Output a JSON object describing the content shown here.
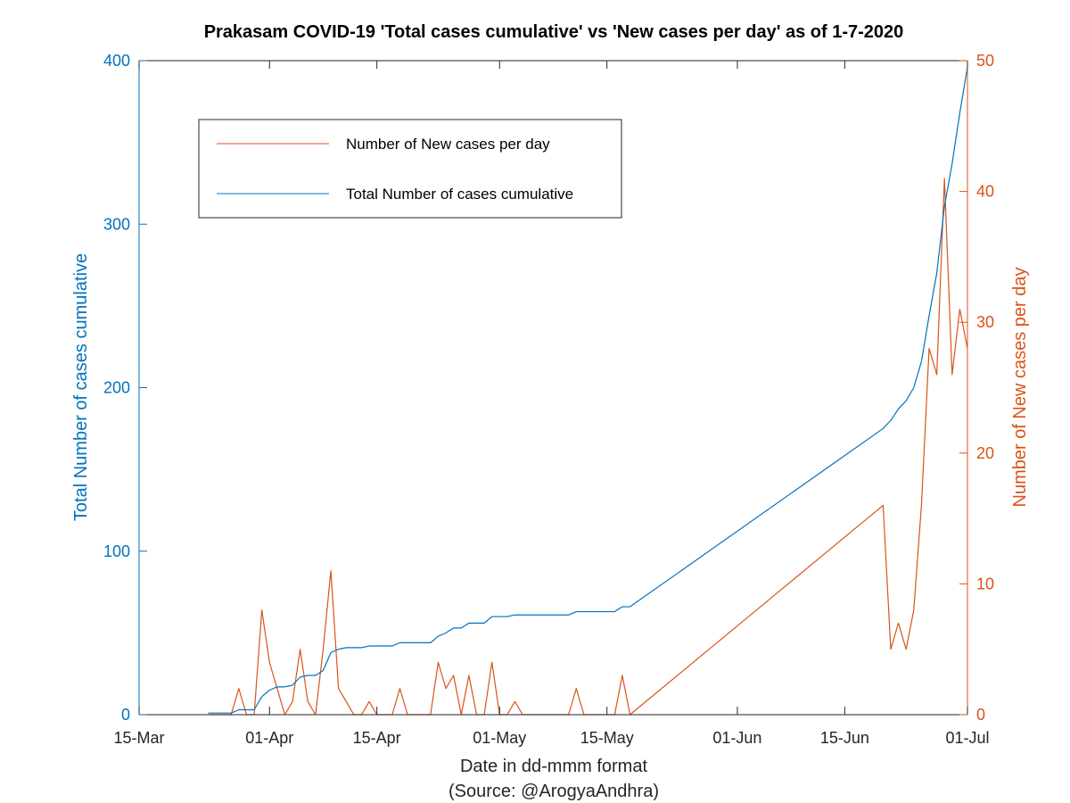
{
  "chart_data": {
    "type": "line",
    "title": "Prakasam COVID-19 'Total cases cumulative' vs 'New cases per day' as of 1-7-2020",
    "xlabel": "Date in dd-mmm format",
    "xlabel2": "(Source: @ArogyaAndhra)",
    "ylabel_left": "Total Number of cases cumulative",
    "ylabel_right": "Number of New cases per day",
    "x_ticks": [
      "15-Mar",
      "01-Apr",
      "15-Apr",
      "01-May",
      "15-May",
      "01-Jun",
      "15-Jun",
      "01-Jul"
    ],
    "x_tick_dates": [
      "2020-03-15",
      "2020-04-01",
      "2020-04-15",
      "2020-05-01",
      "2020-05-15",
      "2020-06-01",
      "2020-06-15",
      "2020-07-01"
    ],
    "xlim": [
      "2020-03-15",
      "2020-07-01"
    ],
    "ylim_left": [
      0,
      400
    ],
    "ylim_right": [
      0,
      50
    ],
    "yticks_left": [
      "0",
      "100",
      "200",
      "300",
      "400"
    ],
    "yticks_right": [
      "0",
      "10",
      "20",
      "30",
      "40",
      "50"
    ],
    "legend_position": "top-left",
    "colors": {
      "left_series": "#0072BD",
      "right_series": "#D95319",
      "axes": "#262626"
    },
    "series": [
      {
        "name": "Number of New cases per day",
        "axis": "right",
        "points": [
          [
            "2020-03-24",
            0
          ],
          [
            "2020-03-25",
            0
          ],
          [
            "2020-03-26",
            0
          ],
          [
            "2020-03-27",
            0
          ],
          [
            "2020-03-28",
            2
          ],
          [
            "2020-03-29",
            0
          ],
          [
            "2020-03-30",
            0
          ],
          [
            "2020-03-31",
            8
          ],
          [
            "2020-04-01",
            4
          ],
          [
            "2020-04-02",
            2
          ],
          [
            "2020-04-03",
            0
          ],
          [
            "2020-04-04",
            1
          ],
          [
            "2020-04-05",
            5
          ],
          [
            "2020-04-06",
            1
          ],
          [
            "2020-04-07",
            0
          ],
          [
            "2020-04-08",
            5
          ],
          [
            "2020-04-09",
            11
          ],
          [
            "2020-04-10",
            2
          ],
          [
            "2020-04-11",
            1
          ],
          [
            "2020-04-12",
            0
          ],
          [
            "2020-04-13",
            0
          ],
          [
            "2020-04-14",
            1
          ],
          [
            "2020-04-15",
            0
          ],
          [
            "2020-04-16",
            0
          ],
          [
            "2020-04-17",
            0
          ],
          [
            "2020-04-18",
            2
          ],
          [
            "2020-04-19",
            0
          ],
          [
            "2020-04-20",
            0
          ],
          [
            "2020-04-21",
            0
          ],
          [
            "2020-04-22",
            0
          ],
          [
            "2020-04-23",
            4
          ],
          [
            "2020-04-24",
            2
          ],
          [
            "2020-04-25",
            3
          ],
          [
            "2020-04-26",
            0
          ],
          [
            "2020-04-27",
            3
          ],
          [
            "2020-04-28",
            0
          ],
          [
            "2020-04-29",
            0
          ],
          [
            "2020-04-30",
            4
          ],
          [
            "2020-05-01",
            0
          ],
          [
            "2020-05-02",
            0
          ],
          [
            "2020-05-03",
            1
          ],
          [
            "2020-05-04",
            0
          ],
          [
            "2020-05-05",
            0
          ],
          [
            "2020-05-06",
            0
          ],
          [
            "2020-05-07",
            0
          ],
          [
            "2020-05-08",
            0
          ],
          [
            "2020-05-09",
            0
          ],
          [
            "2020-05-10",
            0
          ],
          [
            "2020-05-11",
            2
          ],
          [
            "2020-05-12",
            0
          ],
          [
            "2020-05-13",
            0
          ],
          [
            "2020-05-14",
            0
          ],
          [
            "2020-05-15",
            0
          ],
          [
            "2020-05-16",
            0
          ],
          [
            "2020-05-17",
            3
          ],
          [
            "2020-05-18",
            0
          ],
          [
            "2020-06-20",
            16
          ],
          [
            "2020-06-21",
            5
          ],
          [
            "2020-06-22",
            7
          ],
          [
            "2020-06-23",
            5
          ],
          [
            "2020-06-24",
            8
          ],
          [
            "2020-06-25",
            16
          ],
          [
            "2020-06-26",
            28
          ],
          [
            "2020-06-27",
            26
          ],
          [
            "2020-06-28",
            41
          ],
          [
            "2020-06-29",
            26
          ],
          [
            "2020-06-30",
            31
          ],
          [
            "2020-07-01",
            28
          ]
        ]
      },
      {
        "name": "Total Number of cases cumulative",
        "axis": "left",
        "points": [
          [
            "2020-03-24",
            1
          ],
          [
            "2020-03-25",
            1
          ],
          [
            "2020-03-26",
            1
          ],
          [
            "2020-03-27",
            1
          ],
          [
            "2020-03-28",
            3
          ],
          [
            "2020-03-29",
            3
          ],
          [
            "2020-03-30",
            3
          ],
          [
            "2020-03-31",
            11
          ],
          [
            "2020-04-01",
            15
          ],
          [
            "2020-04-02",
            17
          ],
          [
            "2020-04-03",
            17
          ],
          [
            "2020-04-04",
            18
          ],
          [
            "2020-04-05",
            23
          ],
          [
            "2020-04-06",
            24
          ],
          [
            "2020-04-07",
            24
          ],
          [
            "2020-04-08",
            27
          ],
          [
            "2020-04-09",
            38
          ],
          [
            "2020-04-10",
            40
          ],
          [
            "2020-04-11",
            41
          ],
          [
            "2020-04-12",
            41
          ],
          [
            "2020-04-13",
            41
          ],
          [
            "2020-04-14",
            42
          ],
          [
            "2020-04-15",
            42
          ],
          [
            "2020-04-16",
            42
          ],
          [
            "2020-04-17",
            42
          ],
          [
            "2020-04-18",
            44
          ],
          [
            "2020-04-19",
            44
          ],
          [
            "2020-04-20",
            44
          ],
          [
            "2020-04-21",
            44
          ],
          [
            "2020-04-22",
            44
          ],
          [
            "2020-04-23",
            48
          ],
          [
            "2020-04-24",
            50
          ],
          [
            "2020-04-25",
            53
          ],
          [
            "2020-04-26",
            53
          ],
          [
            "2020-04-27",
            56
          ],
          [
            "2020-04-28",
            56
          ],
          [
            "2020-04-29",
            56
          ],
          [
            "2020-04-30",
            60
          ],
          [
            "2020-05-01",
            60
          ],
          [
            "2020-05-02",
            60
          ],
          [
            "2020-05-03",
            61
          ],
          [
            "2020-05-04",
            61
          ],
          [
            "2020-05-05",
            61
          ],
          [
            "2020-05-06",
            61
          ],
          [
            "2020-05-07",
            61
          ],
          [
            "2020-05-08",
            61
          ],
          [
            "2020-05-09",
            61
          ],
          [
            "2020-05-10",
            61
          ],
          [
            "2020-05-11",
            63
          ],
          [
            "2020-05-12",
            63
          ],
          [
            "2020-05-13",
            63
          ],
          [
            "2020-05-14",
            63
          ],
          [
            "2020-05-15",
            63
          ],
          [
            "2020-05-16",
            63
          ],
          [
            "2020-05-17",
            66
          ],
          [
            "2020-05-18",
            66
          ],
          [
            "2020-06-20",
            175
          ],
          [
            "2020-06-21",
            180
          ],
          [
            "2020-06-22",
            187
          ],
          [
            "2020-06-23",
            192
          ],
          [
            "2020-06-24",
            200
          ],
          [
            "2020-06-25",
            216
          ],
          [
            "2020-06-26",
            244
          ],
          [
            "2020-06-27",
            270
          ],
          [
            "2020-06-28",
            311
          ],
          [
            "2020-06-29",
            337
          ],
          [
            "2020-06-30",
            368
          ],
          [
            "2020-07-01",
            396
          ]
        ]
      }
    ]
  }
}
